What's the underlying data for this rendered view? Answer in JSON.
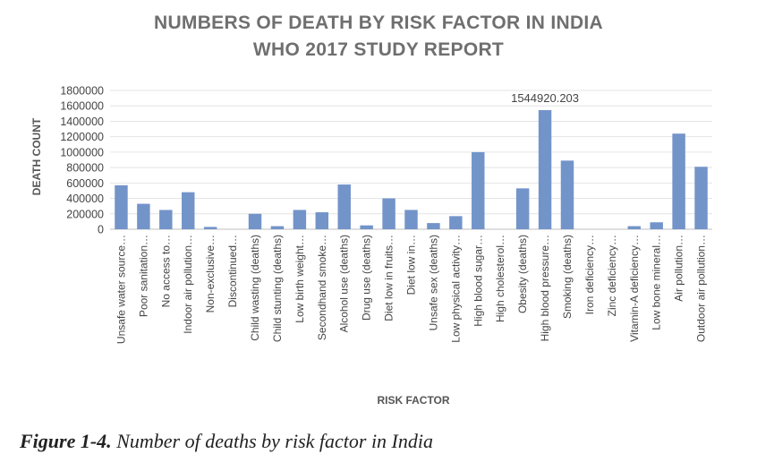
{
  "chart_data": {
    "type": "bar",
    "title": "NUMBERS OF DEATH BY RISK FACTOR IN INDIA",
    "subtitle": "WHO 2017 STUDY REPORT",
    "xlabel": "RISK FACTOR",
    "ylabel": "DEATH COUNT",
    "ylim": [
      0,
      1800000
    ],
    "yticks": [
      "0",
      "200000",
      "400000",
      "600000",
      "800000",
      "1000000",
      "1200000",
      "1400000",
      "1600000",
      "1800000"
    ],
    "grid": true,
    "bar_color": "#7394c9",
    "categories": [
      "Unsafe water source…",
      "Poor sanitation…",
      "No access to…",
      "Indoor air pollution…",
      "Non-exclusive…",
      "Discontinued…",
      "Child wasting (deaths)",
      "Child stunting (deaths)",
      "Low birth weight…",
      "Secondhand smoke…",
      "Alcohol use (deaths)",
      "Drug use (deaths)",
      "Diet low in fruits…",
      "Diet low in…",
      "Unsafe sex (deaths)",
      "Low physical activity…",
      "High blood sugar…",
      "High cholesterol…",
      "Obesity (deaths)",
      "High blood pressure…",
      "Smoking (deaths)",
      "Iron deficiency…",
      "Zinc deficiency…",
      "Vitamin-A deficiency…",
      "Low bone mineral…",
      "Air pollution…",
      "Outdoor air pollution…"
    ],
    "values": [
      570000,
      330000,
      250000,
      480000,
      30000,
      0,
      200000,
      40000,
      250000,
      220000,
      580000,
      50000,
      400000,
      250000,
      80000,
      170000,
      1000000,
      0,
      530000,
      1544920.203,
      890000,
      0,
      0,
      40000,
      90000,
      1240000,
      810000
    ],
    "data_labels": [
      {
        "index": 19,
        "text": "1544920.203"
      }
    ]
  },
  "caption": {
    "figure_label": "Figure 1-4.",
    "text": "Number of deaths by risk factor in India"
  }
}
